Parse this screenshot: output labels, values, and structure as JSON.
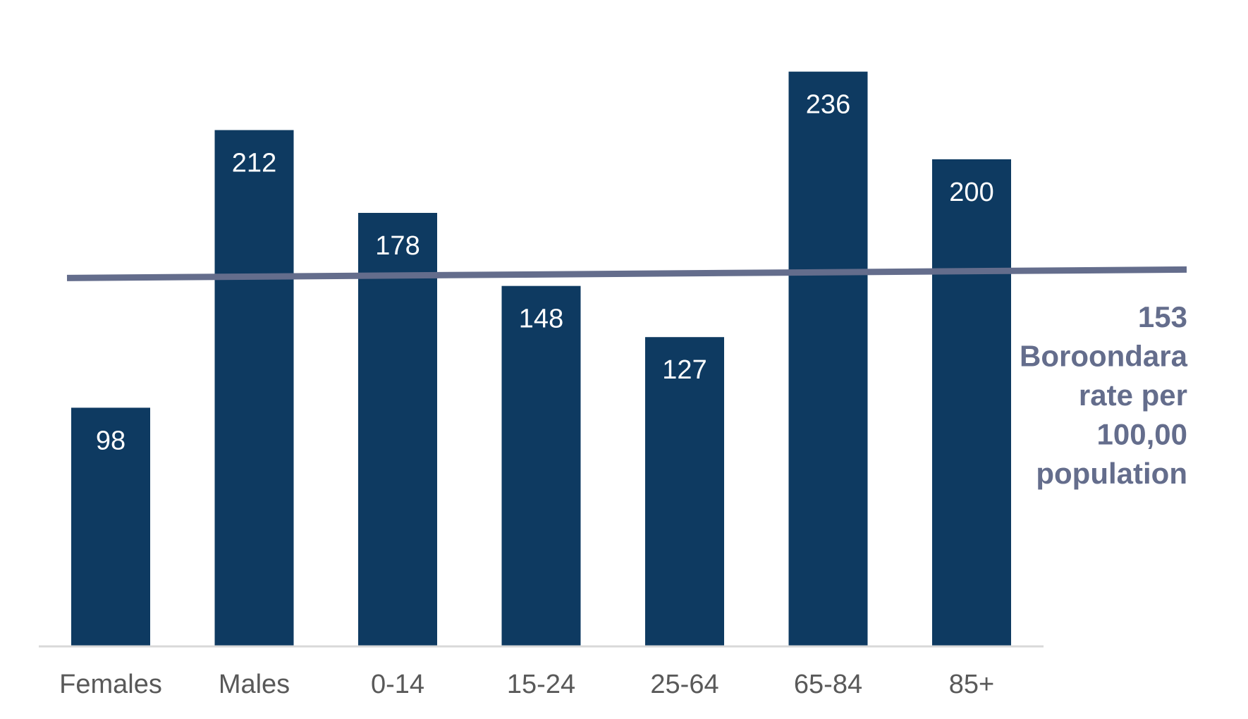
{
  "chart_data": {
    "type": "bar",
    "title": "",
    "xlabel": "",
    "ylabel": "",
    "categories": [
      "Females",
      "Males",
      "0-14",
      "15-24",
      "25-64",
      "65-84",
      "85+"
    ],
    "series": [
      {
        "values": [
          98,
          212,
          178,
          148,
          127,
          236,
          200
        ]
      }
    ],
    "data_labels": [
      "98",
      "212",
      "178",
      "148",
      "127",
      "236",
      "200"
    ],
    "ylim": [
      0,
      260
    ],
    "grid": false,
    "reference_line": {
      "value": 153,
      "label_lines": [
        "153",
        "Boroondara",
        "rate per",
        "100,00",
        "population"
      ]
    },
    "colors": {
      "bar": "#0e3a61",
      "reference_line": "#646d8c",
      "axis": "#d9d9d9",
      "category_text": "#595959"
    }
  }
}
